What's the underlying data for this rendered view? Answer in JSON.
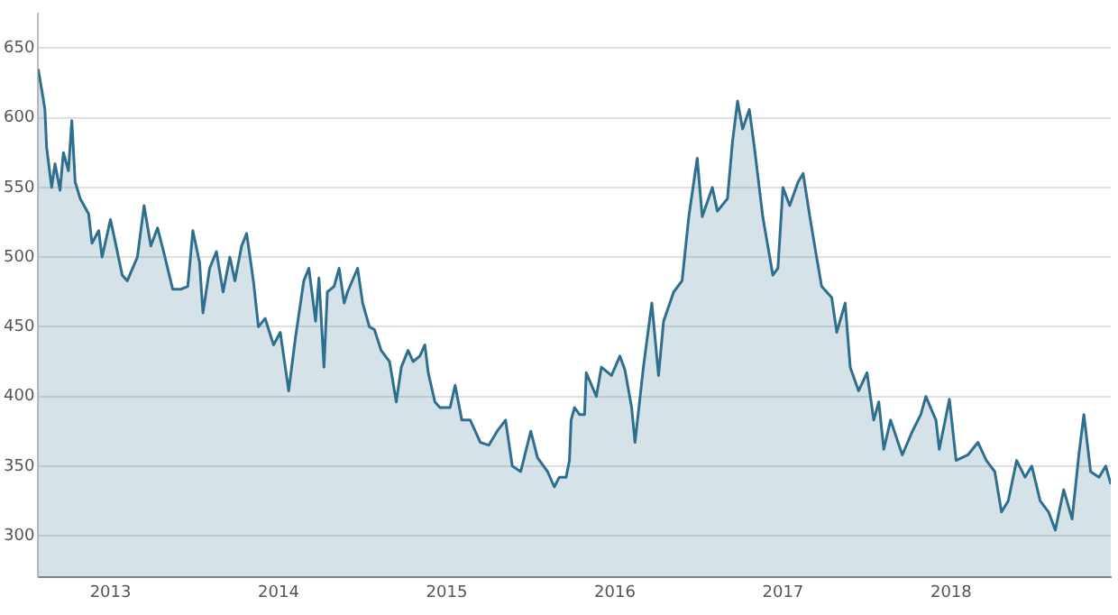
{
  "chart_data": {
    "type": "area",
    "grid": "y",
    "xlim": [
      2012.57,
      2018.95
    ],
    "ylim": [
      270,
      675
    ],
    "xticks": [
      2013,
      2014,
      2015,
      2016,
      2017,
      2018
    ],
    "yticks": [
      300,
      350,
      400,
      450,
      500,
      550,
      600,
      650
    ],
    "series": [
      {
        "color": "#2e6e8e",
        "x": [
          2012.57,
          2012.59,
          2012.61,
          2012.62,
          2012.65,
          2012.67,
          2012.7,
          2012.72,
          2012.75,
          2012.77,
          2012.79,
          2012.82,
          2012.87,
          2012.89,
          2012.93,
          2012.95,
          2013.0,
          2013.03,
          2013.07,
          2013.1,
          2013.16,
          2013.2,
          2013.24,
          2013.28,
          2013.32,
          2013.37,
          2013.42,
          2013.46,
          2013.49,
          2013.53,
          2013.55,
          2013.59,
          2013.63,
          2013.67,
          2013.71,
          2013.74,
          2013.78,
          2013.81,
          2013.85,
          2013.88,
          2013.92,
          2013.97,
          2014.01,
          2014.06,
          2014.1,
          2014.15,
          2014.18,
          2014.22,
          2014.24,
          2014.27,
          2014.29,
          2014.33,
          2014.36,
          2014.39,
          2014.41,
          2014.47,
          2014.5,
          2014.54,
          2014.57,
          2014.61,
          2014.66,
          2014.7,
          2014.73,
          2014.77,
          2014.8,
          2014.84,
          2014.87,
          2014.89,
          2014.93,
          2014.96,
          2015.02,
          2015.05,
          2015.09,
          2015.14,
          2015.2,
          2015.25,
          2015.3,
          2015.35,
          2015.39,
          2015.44,
          2015.5,
          2015.54,
          2015.6,
          2015.64,
          2015.67,
          2015.71,
          2015.73,
          2015.74,
          2015.76,
          2015.79,
          2015.82,
          2015.83,
          2015.89,
          2015.92,
          2015.98,
          2016.03,
          2016.06,
          2016.1,
          2016.12,
          2016.17,
          2016.22,
          2016.26,
          2016.29,
          2016.35,
          2016.4,
          2016.44,
          2016.49,
          2016.52,
          2016.58,
          2016.61,
          2016.67,
          2016.7,
          2016.73,
          2016.76,
          2016.8,
          2016.83,
          2016.88,
          2016.94,
          2016.97,
          2017.0,
          2017.04,
          2017.09,
          2017.12,
          2017.16,
          2017.2,
          2017.23,
          2017.29,
          2017.32,
          2017.37,
          2017.4,
          2017.45,
          2017.5,
          2017.54,
          2017.57,
          2017.6,
          2017.64,
          2017.71,
          2017.77,
          2017.82,
          2017.85,
          2017.91,
          2017.93,
          2017.99,
          2018.03,
          2018.1,
          2018.16,
          2018.21,
          2018.26,
          2018.3,
          2018.34,
          2018.39,
          2018.44,
          2018.48,
          2018.53,
          2018.58,
          2018.62,
          2018.67,
          2018.72,
          2018.76,
          2018.79,
          2018.83,
          2018.88,
          2018.92,
          2018.95
        ],
        "values": [
          635,
          621,
          606,
          579,
          550,
          567,
          548,
          575,
          562,
          598,
          554,
          542,
          531,
          510,
          519,
          500,
          527,
          510,
          487,
          483,
          500,
          537,
          508,
          521,
          502,
          477,
          477,
          479,
          519,
          496,
          460,
          492,
          504,
          475,
          500,
          483,
          508,
          517,
          483,
          450,
          456,
          437,
          446,
          404,
          442,
          483,
          492,
          454,
          485,
          421,
          475,
          479,
          492,
          467,
          475,
          492,
          467,
          450,
          448,
          433,
          425,
          396,
          421,
          433,
          425,
          429,
          437,
          417,
          396,
          392,
          392,
          408,
          383,
          383,
          367,
          365,
          375,
          383,
          350,
          346,
          375,
          356,
          346,
          335,
          342,
          342,
          354,
          383,
          392,
          387,
          387,
          417,
          400,
          421,
          415,
          429,
          419,
          392,
          367,
          421,
          467,
          415,
          454,
          475,
          483,
          529,
          571,
          529,
          550,
          533,
          542,
          583,
          612,
          592,
          606,
          579,
          529,
          487,
          492,
          550,
          537,
          554,
          560,
          529,
          500,
          479,
          471,
          446,
          467,
          421,
          404,
          417,
          383,
          396,
          362,
          383,
          358,
          375,
          387,
          400,
          383,
          362,
          398,
          354,
          358,
          367,
          354,
          346,
          317,
          325,
          354,
          342,
          350,
          325,
          317,
          304,
          333,
          312,
          358,
          387,
          346,
          342,
          350,
          337
        ]
      }
    ]
  }
}
